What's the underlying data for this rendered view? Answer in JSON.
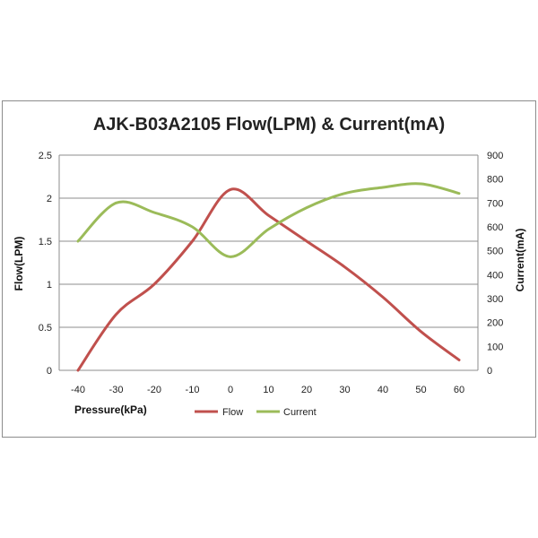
{
  "chart_data": {
    "type": "line",
    "title": "AJK-B03A2105 Flow(LPM) & Current(mA)",
    "xlabel": "Pressure(kPa)",
    "ylabel": "Flow(LPM)",
    "y2label": "Current(mA)",
    "x": [
      -40,
      -30,
      -20,
      -10,
      0,
      10,
      20,
      30,
      40,
      50,
      60
    ],
    "xlim": [
      -40,
      60
    ],
    "ylim": [
      0,
      2.5
    ],
    "y2lim": [
      0,
      900
    ],
    "yticks": [
      "0",
      "0.5",
      "1",
      "1.5",
      "2",
      "2.5"
    ],
    "y2ticks": [
      "0",
      "100",
      "200",
      "300",
      "400",
      "500",
      "600",
      "700",
      "800",
      "900"
    ],
    "xticks": [
      "-40",
      "-30",
      "-20",
      "-10",
      "0",
      "10",
      "20",
      "30",
      "40",
      "50",
      "60"
    ],
    "grid": true,
    "legend_position": "bottom",
    "series": [
      {
        "name": "Flow",
        "axis": "left",
        "color": "#C0504D",
        "values": [
          0,
          0.65,
          1.0,
          1.5,
          2.1,
          1.8,
          1.5,
          1.2,
          0.85,
          0.45,
          0.12
        ]
      },
      {
        "name": "Current",
        "axis": "right",
        "color": "#9BBB59",
        "values": [
          540,
          700,
          660,
          600,
          475,
          590,
          680,
          740,
          765,
          780,
          740
        ]
      }
    ]
  }
}
